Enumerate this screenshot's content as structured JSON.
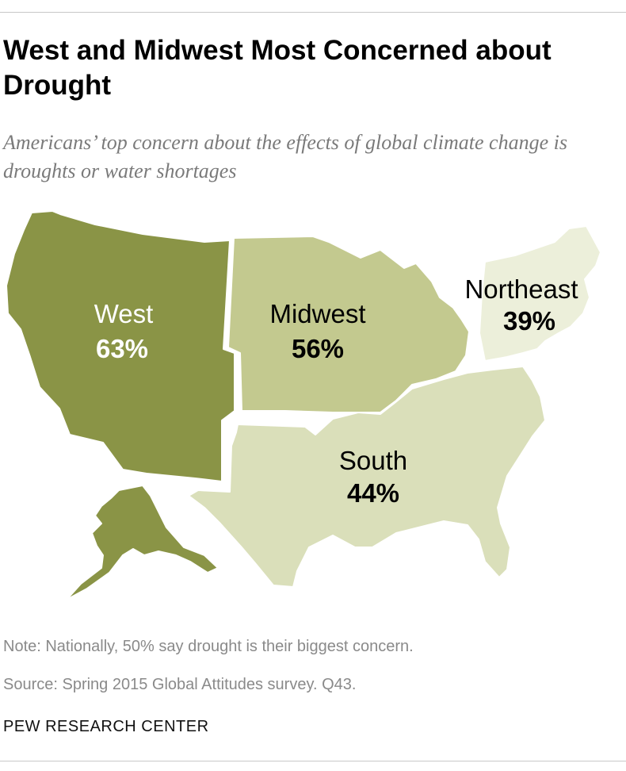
{
  "title": "West and Midwest Most Concerned about Drought",
  "subtitle": "Americans’ top concern about the effects of global climate change is droughts or water shortages",
  "regions": [
    {
      "id": "west",
      "name": "West",
      "value": "63%",
      "pct": 63,
      "color": "#8a9446",
      "label_color": "#ffffff"
    },
    {
      "id": "midwest",
      "name": "Midwest",
      "value": "56%",
      "pct": 56,
      "color": "#c3c98f",
      "label_color": "#000000"
    },
    {
      "id": "northeast",
      "name": "Northeast",
      "value": "39%",
      "pct": 39,
      "color": "#ecefda",
      "label_color": "#000000"
    },
    {
      "id": "south",
      "name": "South",
      "value": "44%",
      "pct": 44,
      "color": "#dadfba",
      "label_color": "#000000"
    }
  ],
  "note": "Note: Nationally, 50% say drought is their biggest concern.",
  "source": "Source: Spring 2015 Global Attitudes survey. Q43.",
  "organization": "PEW RESEARCH CENTER"
}
